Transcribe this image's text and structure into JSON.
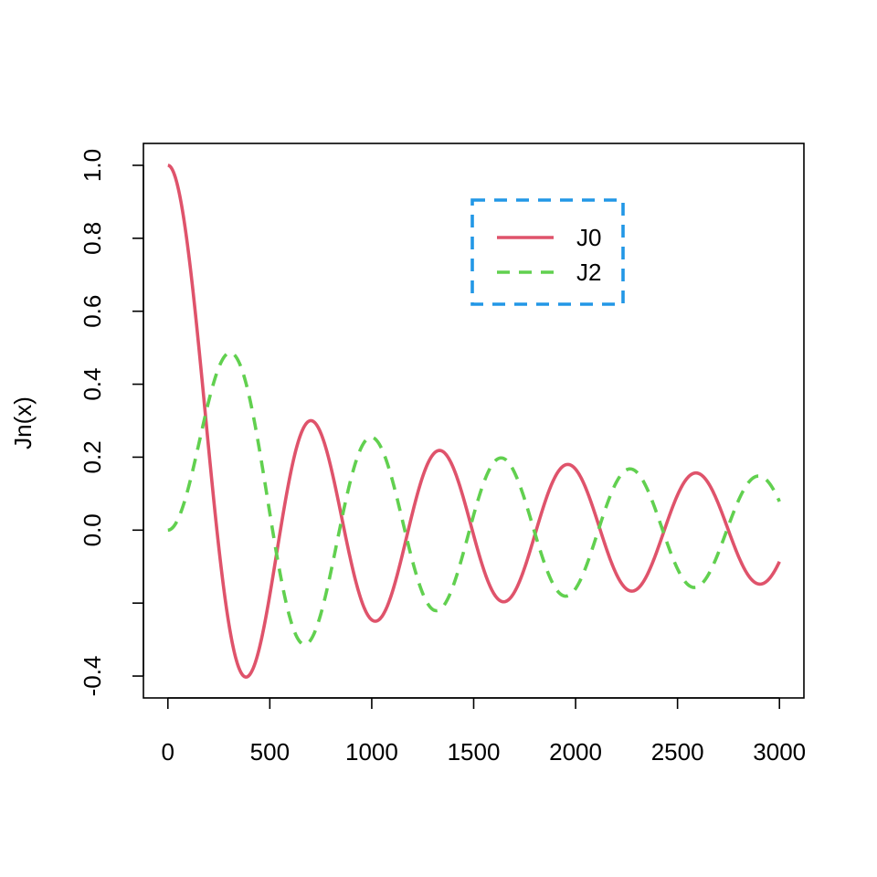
{
  "chart_data": {
    "type": "line",
    "title": "",
    "xlabel": "",
    "ylabel": "Jn(x)",
    "xlim": [
      -120,
      3120
    ],
    "ylim": [
      -0.46,
      1.06
    ],
    "x_ticks": [
      0,
      500,
      1000,
      1500,
      2000,
      2500,
      3000
    ],
    "x_tick_labels": [
      "0",
      "500",
      "1000",
      "1500",
      "2000",
      "2500",
      "3000"
    ],
    "y_ticks": [
      -0.4,
      -0.2,
      0.0,
      0.2,
      0.4,
      0.6,
      0.8,
      1.0
    ],
    "y_tick_labels": [
      "-0.4",
      "",
      "0.0",
      "0.2",
      "0.4",
      "0.6",
      "0.8",
      "1.0"
    ],
    "grid": false,
    "legend": {
      "position": "top-center",
      "border_color": "#2297E6",
      "border_style": "dashed"
    },
    "x_scale_note": "x values are the index; underlying Bessel argument = index / 100",
    "series": [
      {
        "name": "J0",
        "color": "#DF536B",
        "line_style": "solid",
        "function": "besselJ0",
        "x": [
          0,
          100,
          200,
          240,
          300,
          400,
          500,
          600,
          700,
          800,
          900,
          1000,
          1100,
          1200,
          1300,
          1400,
          1500,
          1600,
          1700,
          1800,
          1900,
          2000,
          2100,
          2200,
          2300,
          2400,
          2500,
          2600,
          2700,
          2800,
          2900,
          3000
        ],
        "values": [
          1.0,
          0.765,
          0.224,
          0.003,
          -0.26,
          -0.397,
          -0.178,
          0.151,
          0.3,
          0.172,
          -0.09,
          -0.246,
          -0.171,
          0.048,
          0.207,
          0.171,
          -0.014,
          -0.175,
          -0.17,
          -0.013,
          0.147,
          0.167,
          0.037,
          -0.121,
          -0.162,
          -0.056,
          0.096,
          0.153,
          0.074,
          -0.075,
          -0.143,
          -0.086
        ]
      },
      {
        "name": "J2",
        "color": "#61D04F",
        "line_style": "dashed",
        "function": "besselJ2",
        "x": [
          0,
          100,
          200,
          300,
          400,
          500,
          600,
          700,
          800,
          900,
          1000,
          1100,
          1200,
          1300,
          1400,
          1500,
          1600,
          1700,
          1800,
          1900,
          2000,
          2100,
          2200,
          2300,
          2400,
          2500,
          2600,
          2700,
          2800,
          2900,
          3000
        ],
        "values": [
          0.0,
          0.115,
          0.353,
          0.486,
          0.364,
          0.047,
          -0.243,
          -0.301,
          -0.113,
          0.145,
          0.255,
          0.14,
          -0.085,
          -0.218,
          -0.152,
          0.041,
          0.186,
          0.158,
          -0.008,
          -0.158,
          -0.16,
          -0.019,
          0.131,
          0.159,
          0.041,
          -0.106,
          -0.155,
          -0.06,
          0.083,
          0.149,
          0.074
        ]
      }
    ]
  }
}
